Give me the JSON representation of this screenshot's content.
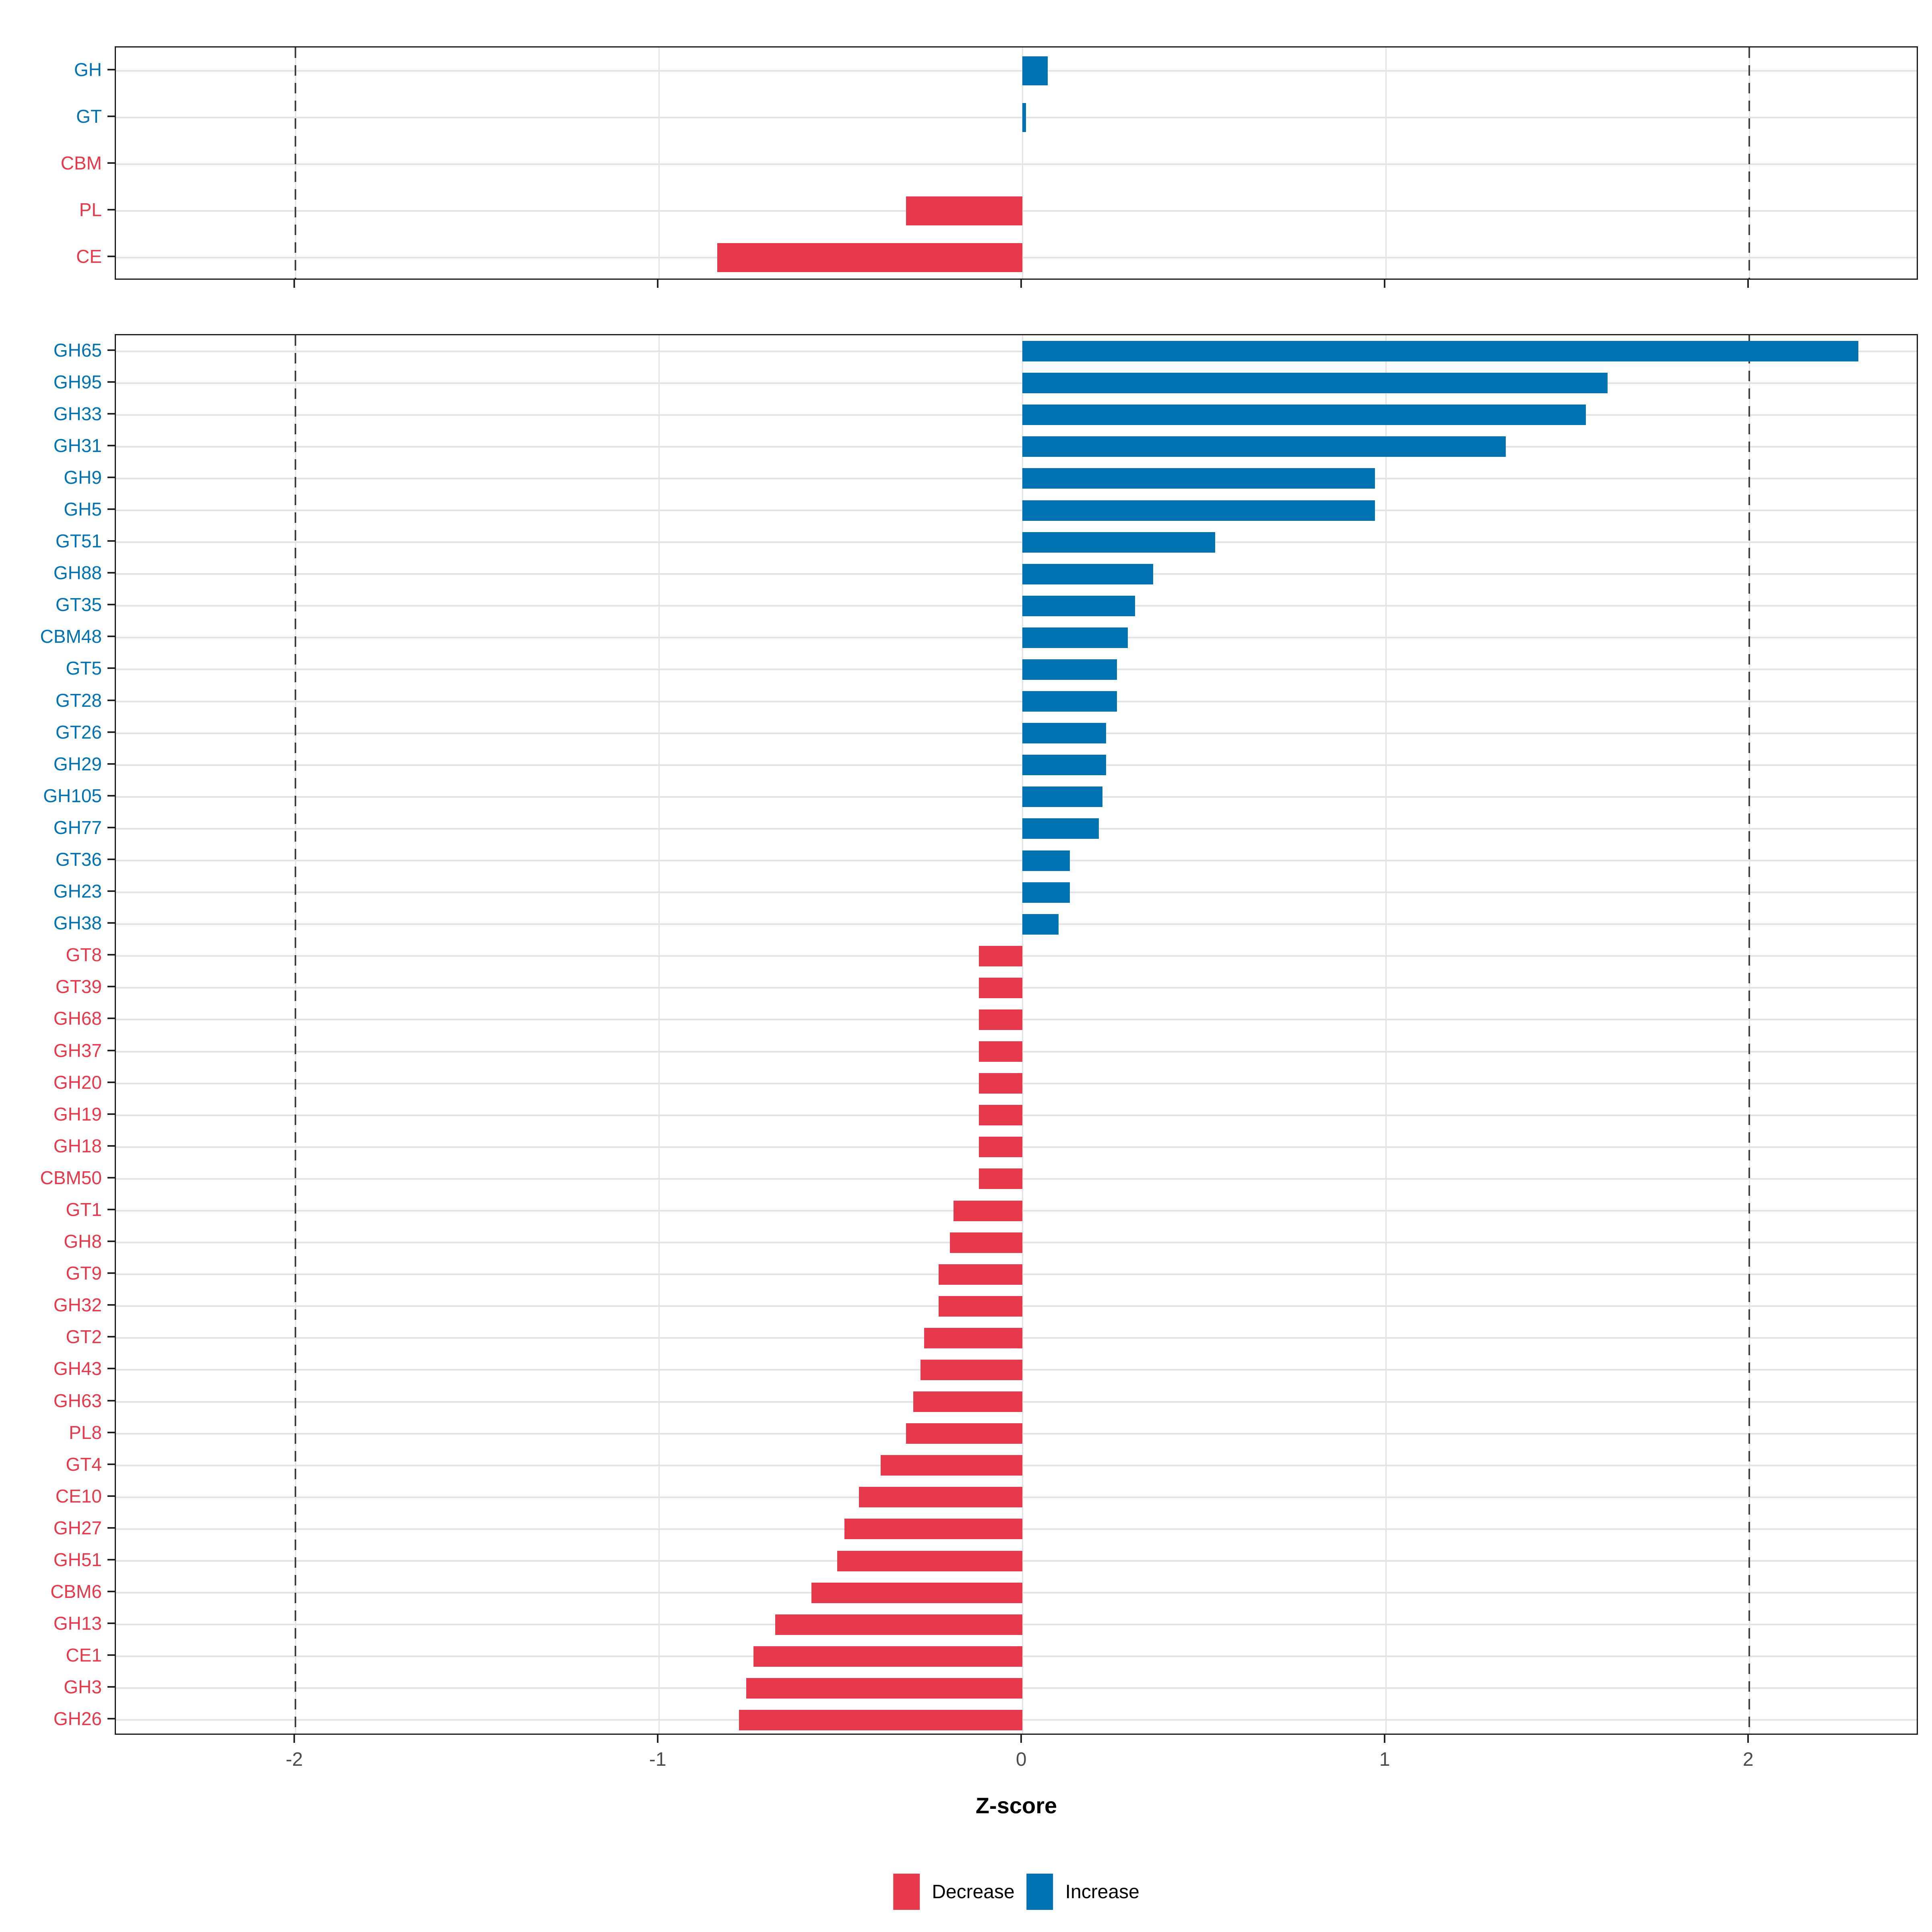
{
  "chart_data": [
    {
      "type": "bar",
      "orientation": "horizontal",
      "panel": "cazyme-classes",
      "categories": [
        "GH",
        "GT",
        "CBM",
        "PL",
        "CE"
      ],
      "values": [
        0.07,
        0.01,
        0.0,
        -0.32,
        -0.84
      ],
      "directions": [
        "increase",
        "increase",
        "decrease",
        "decrease",
        "decrease"
      ],
      "xlabel": "Z-score",
      "grid": "on",
      "legend_position": "bottom"
    },
    {
      "type": "bar",
      "orientation": "horizontal",
      "panel": "cazyme-families",
      "categories": [
        "GH65",
        "GH95",
        "GH33",
        "GH31",
        "GH9",
        "GH5",
        "GT51",
        "GH88",
        "GT35",
        "CBM48",
        "GT5",
        "GT28",
        "GT26",
        "GH29",
        "GH105",
        "GH77",
        "GT36",
        "GH23",
        "GH38",
        "GT8",
        "GT39",
        "GH68",
        "GH37",
        "GH20",
        "GH19",
        "GH18",
        "CBM50",
        "GT1",
        "GH8",
        "GT9",
        "GH32",
        "GT2",
        "GH43",
        "GH63",
        "PL8",
        "GT4",
        "CE10",
        "GH27",
        "GH51",
        "CBM6",
        "GH13",
        "CE1",
        "GH3",
        "GH26"
      ],
      "values": [
        2.3,
        1.61,
        1.55,
        1.33,
        0.97,
        0.97,
        0.53,
        0.36,
        0.31,
        0.29,
        0.26,
        0.26,
        0.23,
        0.23,
        0.22,
        0.21,
        0.13,
        0.13,
        0.1,
        -0.12,
        -0.12,
        -0.12,
        -0.12,
        -0.12,
        -0.12,
        -0.12,
        -0.12,
        -0.19,
        -0.2,
        -0.23,
        -0.23,
        -0.27,
        -0.28,
        -0.3,
        -0.32,
        -0.39,
        -0.45,
        -0.49,
        -0.51,
        -0.58,
        -0.68,
        -0.74,
        -0.76,
        -0.78
      ],
      "directions": [
        "increase",
        "increase",
        "increase",
        "increase",
        "increase",
        "increase",
        "increase",
        "increase",
        "increase",
        "increase",
        "increase",
        "increase",
        "increase",
        "increase",
        "increase",
        "increase",
        "increase",
        "increase",
        "increase",
        "decrease",
        "decrease",
        "decrease",
        "decrease",
        "decrease",
        "decrease",
        "decrease",
        "decrease",
        "decrease",
        "decrease",
        "decrease",
        "decrease",
        "decrease",
        "decrease",
        "decrease",
        "decrease",
        "decrease",
        "decrease",
        "decrease",
        "decrease",
        "decrease",
        "decrease",
        "decrease",
        "decrease",
        "decrease"
      ],
      "xlabel": "Z-score",
      "grid": "on",
      "legend_position": "bottom"
    }
  ],
  "axis": {
    "title": "Z-score",
    "tick_labels": [
      "-2",
      "-1",
      "0",
      "1",
      "2"
    ],
    "tick_values": [
      -2,
      -1,
      0,
      1,
      2
    ],
    "xmin": -2.494,
    "xmax": 2.467,
    "dashed_at": [
      -2,
      2
    ]
  },
  "legend": {
    "decrease": "Decrease",
    "increase": "Increase"
  },
  "colors": {
    "increase": "#0072B2",
    "decrease": "#E6394B",
    "grid": "#E3E3E3",
    "dash": "#404040",
    "tick_label": "#4D4D4D",
    "panel_border": "#1A1A1A"
  }
}
